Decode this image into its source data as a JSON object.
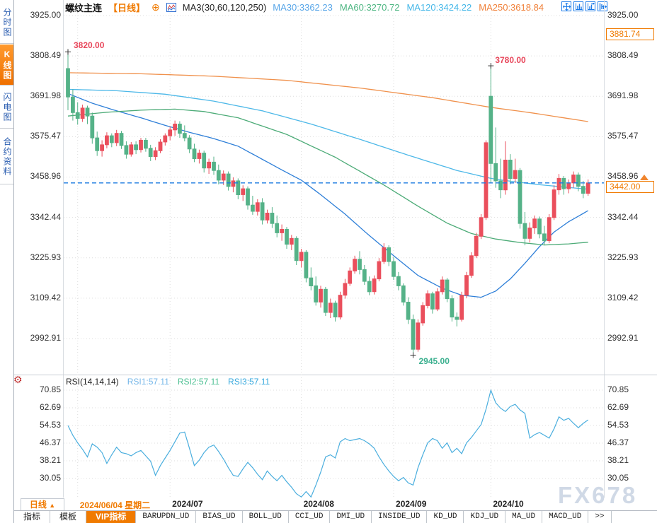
{
  "app": {
    "watermark": "FX678"
  },
  "sidebar": {
    "items": [
      {
        "label": "分时图",
        "active": false
      },
      {
        "label": "K线图",
        "active": true
      },
      {
        "label": "闪电图",
        "active": false
      },
      {
        "label": "合约资料",
        "active": false
      }
    ]
  },
  "header": {
    "symbol": "螺纹主连",
    "period": "【日线】",
    "plus": "⊕",
    "ma_title": "MA3(30,60,120,250)",
    "ma_values": [
      {
        "label": "MA30:3362.23",
        "color": "#58a6e8"
      },
      {
        "label": "MA60:3270.72",
        "color": "#4cb581"
      },
      {
        "label": "MA120:3424.22",
        "color": "#45b7e8"
      },
      {
        "label": "MA250:3618.84",
        "color": "#f0813a"
      }
    ]
  },
  "toolbar": {
    "icons": [
      "crosshair-move-icon",
      "axis-bars-icon",
      "axis-bars-arrow-icon",
      "exit-bars-icon"
    ]
  },
  "rsi_header": {
    "title": "RSI(14,14,14)",
    "values": [
      {
        "label": "RSI1:57.11",
        "color": "#74b6e8"
      },
      {
        "label": "RSI2:57.11",
        "color": "#4cbf92"
      },
      {
        "label": "RSI3:57.11",
        "color": "#33a7dd"
      }
    ]
  },
  "markers": {
    "high": "3820.00",
    "spike": "3780.00",
    "low": "2945.00",
    "last": "3442.00",
    "upper": "3881.74"
  },
  "bottom": {
    "timeframe": "日线",
    "timeframe_arrow": "▲",
    "tabs": [
      {
        "label": "指标",
        "cn": true
      },
      {
        "label": "模板",
        "cn": true
      },
      {
        "label": "VIP指标",
        "cn": true,
        "active": true
      },
      {
        "label": "BARUPDN_UD"
      },
      {
        "label": "BIAS_UD"
      },
      {
        "label": "BOLL_UD"
      },
      {
        "label": "CCI_UD"
      },
      {
        "label": "DMI_UD"
      },
      {
        "label": "INSIDE_UD"
      },
      {
        "label": "KD_UD"
      },
      {
        "label": "KDJ_UD"
      },
      {
        "label": "MA_UD"
      },
      {
        "label": "MACD_UD"
      },
      {
        "label": ">>"
      }
    ]
  },
  "chart_data": {
    "type": "candlestick",
    "title": "螺纹主连 日线 (rebar main continuous, daily)",
    "up_color": "#ea4f5c",
    "down_color": "#55b288",
    "grid": true,
    "price_axis": {
      "ticks": [
        "3925.00",
        "3808.49",
        "3691.98",
        "3575.47",
        "3458.96",
        "3342.44",
        "3225.93",
        "3109.42",
        "2992.91"
      ]
    },
    "x_gridlines": [
      {
        "index": 2,
        "label": "2024/06/04 星期二",
        "highlight": true
      },
      {
        "index": 21,
        "label": "2024/07"
      },
      {
        "index": 48,
        "label": "2024/08"
      },
      {
        "index": 67,
        "label": "2024/09"
      },
      {
        "index": 87,
        "label": "2024/10"
      }
    ],
    "last_price": 3442.0,
    "upper_band": 3881.74,
    "annotations": [
      {
        "kind": "high",
        "index": 0,
        "value": 3820,
        "label": "3820.00",
        "color": "#e8465a"
      },
      {
        "kind": "high",
        "index": 87,
        "value": 3780,
        "label": "3780.00",
        "color": "#e8465a"
      },
      {
        "kind": "low",
        "index": 71,
        "value": 2945,
        "label": "2945.00",
        "color": "#3bb08f"
      }
    ],
    "candles": [
      [
        3772,
        3820,
        3652,
        3690
      ],
      [
        3690,
        3712,
        3622,
        3645
      ],
      [
        3645,
        3675,
        3610,
        3628
      ],
      [
        3628,
        3668,
        3618,
        3658
      ],
      [
        3658,
        3665,
        3612,
        3635
      ],
      [
        3635,
        3645,
        3555,
        3572
      ],
      [
        3572,
        3590,
        3520,
        3535
      ],
      [
        3535,
        3565,
        3518,
        3552
      ],
      [
        3552,
        3588,
        3542,
        3578
      ],
      [
        3578,
        3585,
        3545,
        3558
      ],
      [
        3558,
        3595,
        3548,
        3585
      ],
      [
        3585,
        3592,
        3540,
        3550
      ],
      [
        3550,
        3562,
        3512,
        3525
      ],
      [
        3525,
        3560,
        3518,
        3552
      ],
      [
        3552,
        3562,
        3525,
        3538
      ],
      [
        3538,
        3572,
        3530,
        3565
      ],
      [
        3565,
        3572,
        3532,
        3542
      ],
      [
        3542,
        3552,
        3505,
        3518
      ],
      [
        3518,
        3545,
        3508,
        3535
      ],
      [
        3535,
        3568,
        3528,
        3560
      ],
      [
        3560,
        3585,
        3550,
        3578
      ],
      [
        3578,
        3605,
        3565,
        3595
      ],
      [
        3595,
        3622,
        3578,
        3612
      ],
      [
        3612,
        3620,
        3572,
        3585
      ],
      [
        3585,
        3608,
        3562,
        3572
      ],
      [
        3572,
        3580,
        3528,
        3540
      ],
      [
        3540,
        3555,
        3502,
        3512
      ],
      [
        3512,
        3538,
        3498,
        3528
      ],
      [
        3528,
        3535,
        3472,
        3485
      ],
      [
        3485,
        3512,
        3468,
        3502
      ],
      [
        3502,
        3518,
        3465,
        3478
      ],
      [
        3478,
        3495,
        3438,
        3450
      ],
      [
        3450,
        3478,
        3436,
        3468
      ],
      [
        3468,
        3475,
        3420,
        3432
      ],
      [
        3432,
        3458,
        3415,
        3448
      ],
      [
        3448,
        3455,
        3395,
        3408
      ],
      [
        3408,
        3435,
        3390,
        3425
      ],
      [
        3425,
        3432,
        3365,
        3378
      ],
      [
        3378,
        3405,
        3350,
        3360
      ],
      [
        3360,
        3395,
        3348,
        3385
      ],
      [
        3385,
        3398,
        3322,
        3335
      ],
      [
        3335,
        3365,
        3325,
        3355
      ],
      [
        3355,
        3372,
        3312,
        3325
      ],
      [
        3325,
        3348,
        3285,
        3298
      ],
      [
        3298,
        3322,
        3275,
        3308
      ],
      [
        3308,
        3315,
        3252,
        3265
      ],
      [
        3265,
        3292,
        3248,
        3282
      ],
      [
        3282,
        3288,
        3205,
        3218
      ],
      [
        3218,
        3252,
        3198,
        3242
      ],
      [
        3242,
        3248,
        3155,
        3168
      ],
      [
        3168,
        3198,
        3132,
        3145
      ],
      [
        3145,
        3172,
        3088,
        3098
      ],
      [
        3098,
        3145,
        3082,
        3135
      ],
      [
        3135,
        3142,
        3058,
        3068
      ],
      [
        3068,
        3108,
        3052,
        3095
      ],
      [
        3095,
        3102,
        3042,
        3055
      ],
      [
        3055,
        3128,
        3048,
        3118
      ],
      [
        3118,
        3165,
        3108,
        3152
      ],
      [
        3152,
        3198,
        3145,
        3188
      ],
      [
        3188,
        3232,
        3180,
        3222
      ],
      [
        3222,
        3245,
        3178,
        3192
      ],
      [
        3192,
        3205,
        3148,
        3158
      ],
      [
        3158,
        3172,
        3118,
        3128
      ],
      [
        3128,
        3175,
        3120,
        3165
      ],
      [
        3165,
        3225,
        3158,
        3215
      ],
      [
        3215,
        3268,
        3208,
        3255
      ],
      [
        3255,
        3262,
        3202,
        3215
      ],
      [
        3215,
        3228,
        3162,
        3172
      ],
      [
        3172,
        3185,
        3132,
        3145
      ],
      [
        3145,
        3152,
        3088,
        3098
      ],
      [
        3098,
        3112,
        3035,
        3048
      ],
      [
        3048,
        3062,
        2945,
        2962
      ],
      [
        2962,
        3048,
        2955,
        3038
      ],
      [
        3038,
        3098,
        3030,
        3088
      ],
      [
        3088,
        3132,
        3080,
        3122
      ],
      [
        3122,
        3128,
        3065,
        3078
      ],
      [
        3078,
        3138,
        3072,
        3128
      ],
      [
        3128,
        3172,
        3120,
        3162
      ],
      [
        3162,
        3168,
        3098,
        3108
      ],
      [
        3108,
        3118,
        3042,
        3055
      ],
      [
        3055,
        3068,
        3028,
        3048
      ],
      [
        3048,
        3128,
        3042,
        3118
      ],
      [
        3118,
        3185,
        3110,
        3175
      ],
      [
        3175,
        3242,
        3168,
        3232
      ],
      [
        3232,
        3298,
        3225,
        3288
      ],
      [
        3288,
        3352,
        3280,
        3342
      ],
      [
        3342,
        3565,
        3335,
        3558
      ],
      [
        3692,
        3780,
        3442,
        3498
      ],
      [
        3498,
        3602,
        3428,
        3448
      ],
      [
        3448,
        3512,
        3398,
        3422
      ],
      [
        3422,
        3562,
        3408,
        3508
      ],
      [
        3508,
        3525,
        3438,
        3455
      ],
      [
        3455,
        3512,
        3442,
        3478
      ],
      [
        3478,
        3485,
        3310,
        3325
      ],
      [
        3325,
        3358,
        3262,
        3282
      ],
      [
        3282,
        3328,
        3270,
        3312
      ],
      [
        3312,
        3348,
        3295,
        3338
      ],
      [
        3338,
        3345,
        3282,
        3295
      ],
      [
        3295,
        3318,
        3262,
        3275
      ],
      [
        3275,
        3352,
        3268,
        3342
      ],
      [
        3342,
        3435,
        3335,
        3422
      ],
      [
        3422,
        3468,
        3408,
        3455
      ],
      [
        3455,
        3462,
        3408,
        3425
      ],
      [
        3425,
        3452,
        3412,
        3442
      ],
      [
        3442,
        3475,
        3428,
        3465
      ],
      [
        3465,
        3472,
        3418,
        3432
      ],
      [
        3432,
        3448,
        3398,
        3412
      ],
      [
        3412,
        3452,
        3405,
        3442
      ]
    ],
    "ma_lines": [
      {
        "name": "MA30",
        "color": "#2e7fd8",
        "points": [
          [
            0,
            3700
          ],
          [
            5,
            3672
          ],
          [
            10,
            3650
          ],
          [
            15,
            3630
          ],
          [
            20,
            3608
          ],
          [
            25,
            3588
          ],
          [
            30,
            3570
          ],
          [
            35,
            3548
          ],
          [
            40,
            3510
          ],
          [
            45,
            3472
          ],
          [
            48,
            3450
          ],
          [
            52,
            3408
          ],
          [
            57,
            3352
          ],
          [
            62,
            3290
          ],
          [
            67,
            3232
          ],
          [
            72,
            3175
          ],
          [
            77,
            3138
          ],
          [
            81,
            3118
          ],
          [
            85,
            3112
          ],
          [
            88,
            3130
          ],
          [
            91,
            3165
          ],
          [
            94,
            3210
          ],
          [
            97,
            3258
          ],
          [
            100,
            3300
          ],
          [
            103,
            3330
          ],
          [
            107,
            3362
          ]
        ]
      },
      {
        "name": "MA60",
        "color": "#4cab77",
        "points": [
          [
            0,
            3635
          ],
          [
            8,
            3646
          ],
          [
            15,
            3652
          ],
          [
            22,
            3655
          ],
          [
            28,
            3648
          ],
          [
            35,
            3630
          ],
          [
            45,
            3582
          ],
          [
            55,
            3516
          ],
          [
            65,
            3436
          ],
          [
            72,
            3375
          ],
          [
            78,
            3326
          ],
          [
            83,
            3296
          ],
          [
            88,
            3280
          ],
          [
            93,
            3270
          ],
          [
            98,
            3263
          ],
          [
            103,
            3266
          ],
          [
            107,
            3271
          ]
        ]
      },
      {
        "name": "MA120",
        "color": "#4db8e8",
        "points": [
          [
            0,
            3712
          ],
          [
            10,
            3708
          ],
          [
            20,
            3698
          ],
          [
            30,
            3678
          ],
          [
            40,
            3650
          ],
          [
            50,
            3612
          ],
          [
            60,
            3568
          ],
          [
            70,
            3522
          ],
          [
            80,
            3478
          ],
          [
            87,
            3455
          ],
          [
            92,
            3445
          ],
          [
            97,
            3437
          ],
          [
            102,
            3430
          ],
          [
            107,
            3424
          ]
        ]
      },
      {
        "name": "MA250",
        "color": "#f0914c",
        "points": [
          [
            0,
            3760
          ],
          [
            15,
            3757
          ],
          [
            30,
            3750
          ],
          [
            45,
            3738
          ],
          [
            60,
            3716
          ],
          [
            75,
            3688
          ],
          [
            87,
            3660
          ],
          [
            95,
            3645
          ],
          [
            101,
            3632
          ],
          [
            107,
            3619
          ]
        ]
      }
    ],
    "rsi": {
      "color": "#4aaede",
      "ticks": [
        "70.85",
        "62.69",
        "54.53",
        "46.37",
        "38.21",
        "30.05"
      ],
      "values": [
        54.5,
        50,
        46.5,
        43.5,
        40,
        46,
        44.5,
        42,
        37,
        41,
        44.5,
        42,
        41.5,
        40.5,
        42,
        43,
        40.5,
        38,
        31.5,
        36,
        39.5,
        43,
        47,
        51,
        51.5,
        44,
        36,
        38.5,
        42,
        44.5,
        45.5,
        42.5,
        39,
        35,
        31.5,
        31,
        34.5,
        37.5,
        35,
        32,
        29.5,
        33.5,
        31,
        29,
        31.5,
        28.5,
        26,
        23,
        21.5,
        24,
        21.5,
        27,
        33,
        40,
        41,
        39.5,
        47,
        48.5,
        47.5,
        48,
        48.5,
        47.5,
        46,
        44,
        40,
        36.5,
        33.5,
        31,
        29,
        30.5,
        28,
        27,
        35,
        41,
        46.5,
        48.5,
        47.5,
        44,
        46.5,
        42,
        44,
        41.5,
        46.5,
        49,
        52,
        55,
        62,
        70.8,
        65,
        62.5,
        61,
        63.3,
        64.3,
        61.7,
        60.1,
        48.7,
        50.3,
        51.3,
        50,
        48.7,
        53,
        58.5,
        56.9,
        57.8,
        55.5,
        53.5,
        55.5,
        57.11
      ]
    }
  }
}
